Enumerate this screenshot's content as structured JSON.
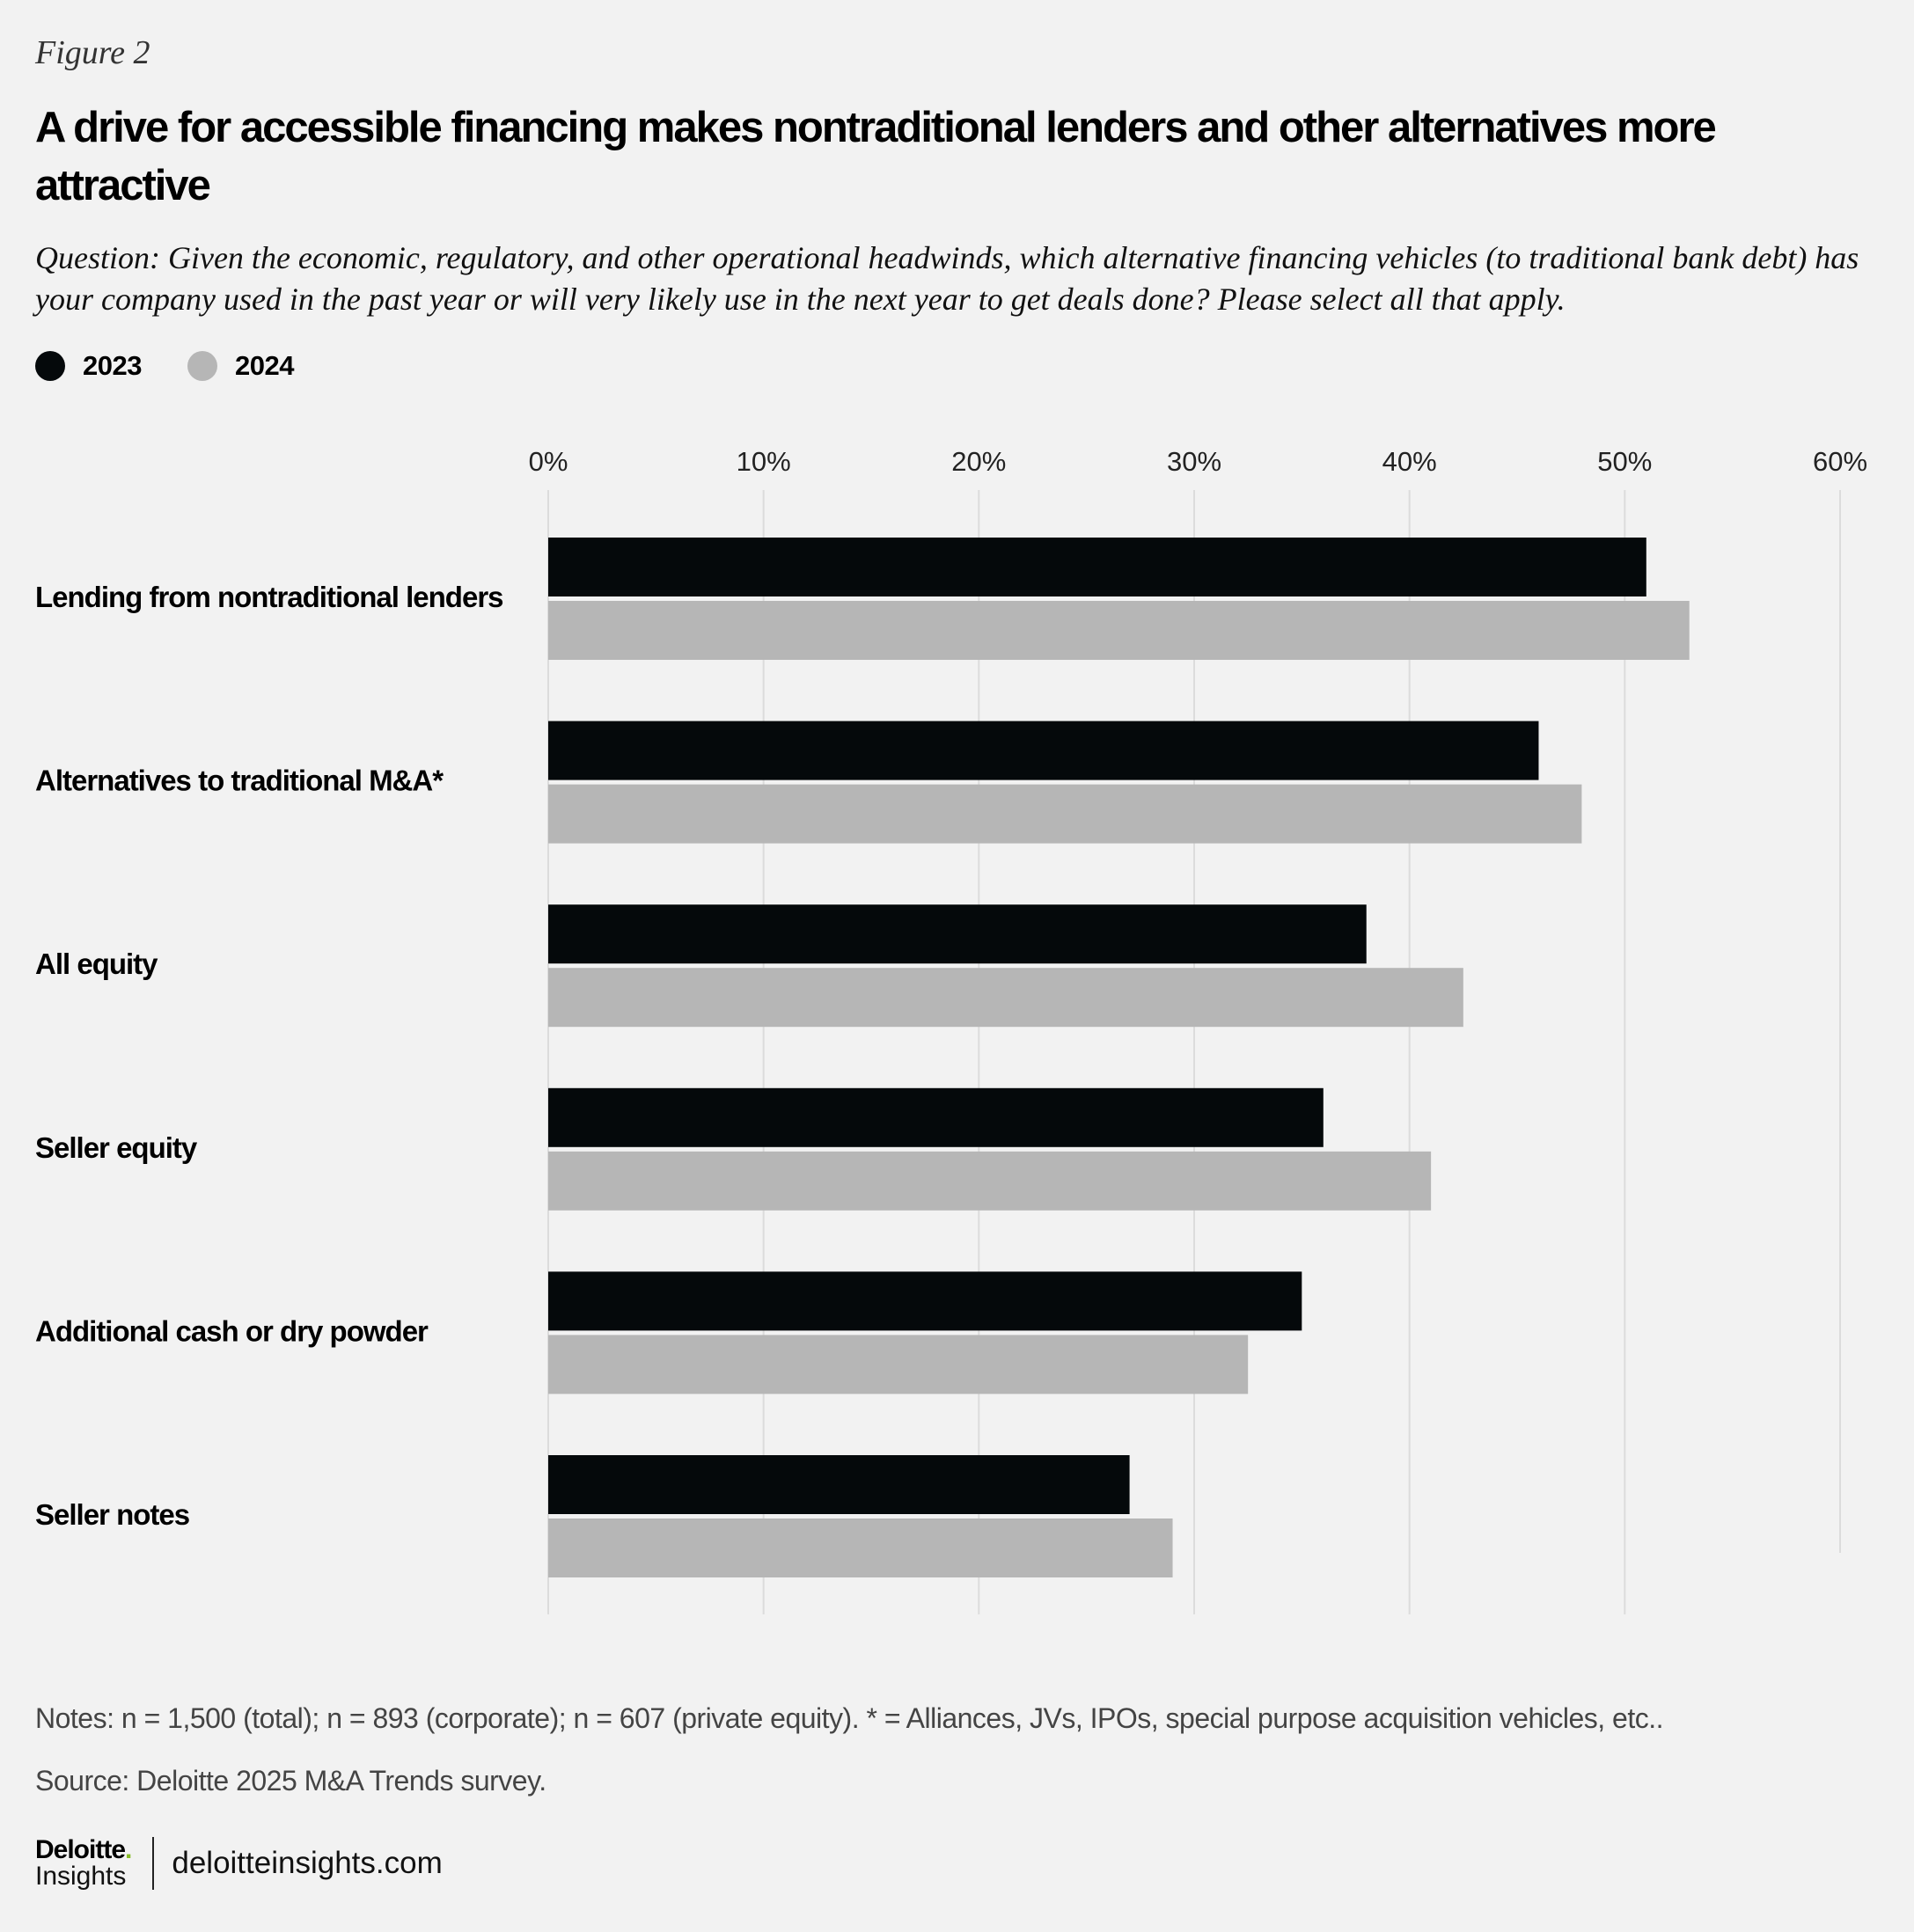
{
  "figure_label": "Figure 2",
  "title": "A drive for accessible financing makes nontraditional lenders and other alternatives more attractive",
  "question": "Question: Given the economic, regulatory, and other operational headwinds, which alternative financing vehicles (to traditional bank debt) has your company used in the past year or will very likely use in the next year to get deals done? Please select all that apply.",
  "chart_data": {
    "type": "bar",
    "orientation": "horizontal",
    "categories": [
      "Lending from nontraditional lenders",
      "Alternatives to traditional M&A*",
      "All equity",
      "Seller equity",
      "Additional cash or dry powder",
      "Seller notes"
    ],
    "series": [
      {
        "name": "2023",
        "color": "#05090b",
        "values": [
          51,
          46,
          38,
          36,
          35,
          27
        ]
      },
      {
        "name": "2024",
        "color": "#b6b6b6",
        "values": [
          53,
          48,
          42.5,
          41,
          32.5,
          29
        ]
      }
    ],
    "xlim": [
      0,
      60
    ],
    "xticks": [
      "0%",
      "10%",
      "20%",
      "30%",
      "40%",
      "50%",
      "60%"
    ],
    "grid": true,
    "legend": "top-left",
    "xlabel": "",
    "ylabel": ""
  },
  "notes": "Notes:  n = 1,500 (total); n = 893 (corporate); n = 607 (private equity). * = Alliances, JVs, IPOs, special purpose acquisition vehicles, etc..",
  "source": "Source: Deloitte 2025 M&A Trends survey.",
  "logo": {
    "line1": "Deloitte",
    "dot": ".",
    "line2": "Insights"
  },
  "site": "deloitteinsights.com"
}
